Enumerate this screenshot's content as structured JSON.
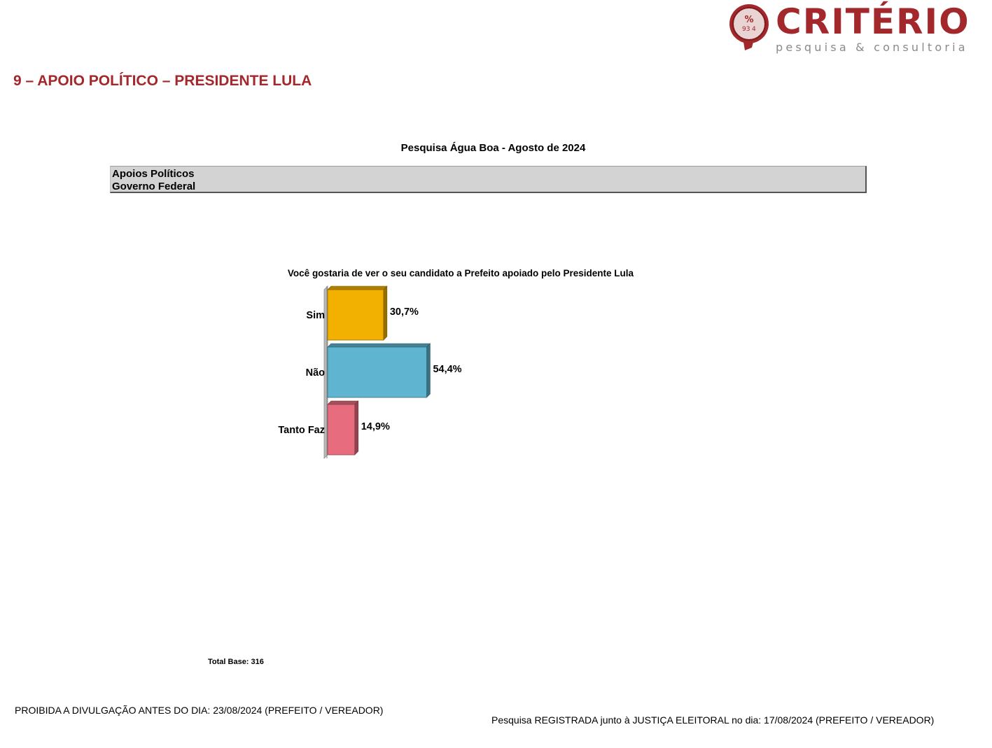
{
  "brand": {
    "name": "CRITÉRIO",
    "tagline": "pesquisa & consultoria",
    "color": "#a3282c"
  },
  "section_title": "9 – APOIO POLÍTICO – PRESIDENTE LULA",
  "survey_title": "Pesquisa Água Boa - Agosto de 2024",
  "header_box": {
    "line1": "Apoios Políticos",
    "line2": "Governo Federal"
  },
  "chart_data": {
    "type": "bar",
    "orientation": "horizontal",
    "title": "Você gostaria de ver o seu candidato a Prefeito apoiado pelo Presidente Lula",
    "categories": [
      "Sim",
      "Não",
      "Tanto Faz"
    ],
    "values": [
      30.7,
      54.4,
      14.9
    ],
    "data_labels": [
      "30,7%",
      "54,4%",
      "14,9%"
    ],
    "colors": [
      "#f2b100",
      "#5fb4cf",
      "#e76d7e"
    ],
    "unit": "%",
    "xlim": [
      0,
      100
    ],
    "grid": false,
    "legend": "none"
  },
  "total_base": "Total Base: 316",
  "footer": {
    "left": "PROIBIDA A DIVULGAÇÃO ANTES DO DIA: 23/08/2024 (PREFEITO / VEREADOR)",
    "right": "Pesquisa REGISTRADA junto à JUSTIÇA ELEITORAL no dia: 17/08/2024 (PREFEITO / VEREADOR)"
  }
}
